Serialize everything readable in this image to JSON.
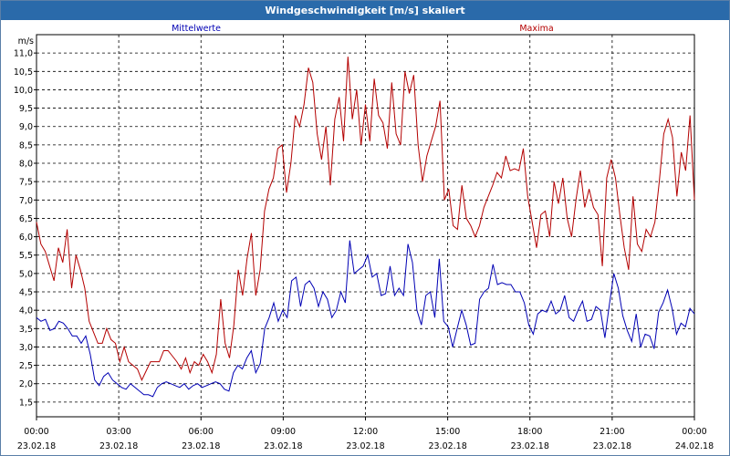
{
  "window": {
    "title": "Windgeschwindigkeit [m/s] skaliert"
  },
  "chart_data": {
    "type": "line",
    "title": "Windgeschwindigkeit [m/s] skaliert",
    "ylabel": "m/s",
    "xlabel": "",
    "ylim": [
      1.1,
      11.5
    ],
    "xlim": [
      0,
      24
    ],
    "grid": true,
    "y_ticks": [
      "1,5",
      "2,0",
      "2,5",
      "3,0",
      "3,5",
      "4,0",
      "4,5",
      "5,0",
      "5,5",
      "6,0",
      "6,5",
      "7,0",
      "7,5",
      "8,0",
      "8,5",
      "9,0",
      "9,5",
      "10,0",
      "10,5",
      "11,0"
    ],
    "x_ticks": [
      {
        "time": "00:00",
        "date": "23.02.18"
      },
      {
        "time": "03:00",
        "date": "23.02.18"
      },
      {
        "time": "06:00",
        "date": "23.02.18"
      },
      {
        "time": "09:00",
        "date": "23.02.18"
      },
      {
        "time": "12:00",
        "date": "23.02.18"
      },
      {
        "time": "15:00",
        "date": "23.02.18"
      },
      {
        "time": "18:00",
        "date": "23.02.18"
      },
      {
        "time": "21:00",
        "date": "23.02.18"
      },
      {
        "time": "00:00",
        "date": "24.02.18"
      }
    ],
    "x_step_hours": 0.1667,
    "series": [
      {
        "name": "Mittelwerte",
        "color": "#0000b4",
        "values": [
          3.8,
          3.7,
          3.75,
          3.45,
          3.5,
          3.7,
          3.65,
          3.5,
          3.3,
          3.3,
          3.1,
          3.3,
          2.8,
          2.1,
          1.95,
          2.2,
          2.3,
          2.1,
          2.0,
          1.9,
          1.85,
          2.0,
          1.9,
          1.8,
          1.7,
          1.7,
          1.65,
          1.9,
          2.0,
          2.05,
          2.0,
          1.95,
          1.9,
          2.0,
          1.85,
          1.95,
          2.0,
          1.9,
          1.95,
          2.0,
          2.05,
          2.0,
          1.85,
          1.8,
          2.3,
          2.5,
          2.4,
          2.7,
          2.9,
          2.3,
          2.55,
          3.5,
          3.8,
          4.2,
          3.7,
          4.0,
          3.8,
          4.8,
          4.9,
          4.1,
          4.7,
          4.8,
          4.6,
          4.1,
          4.5,
          4.3,
          3.8,
          4.0,
          4.5,
          4.2,
          5.9,
          5.0,
          5.1,
          5.2,
          5.5,
          4.9,
          5.0,
          4.4,
          4.45,
          5.2,
          4.4,
          4.6,
          4.4,
          5.8,
          5.3,
          4.0,
          3.6,
          4.4,
          4.5,
          3.8,
          5.4,
          3.7,
          3.55,
          3.0,
          3.5,
          4.0,
          3.6,
          3.05,
          3.1,
          4.3,
          4.5,
          4.6,
          5.25,
          4.7,
          4.75,
          4.7,
          4.7,
          4.5,
          4.5,
          4.2,
          3.6,
          3.35,
          3.9,
          4.0,
          3.95,
          4.25,
          3.9,
          4.0,
          4.4,
          3.8,
          3.7,
          4.0,
          4.25,
          3.7,
          3.75,
          4.1,
          4.0,
          3.25,
          4.15,
          5.0,
          4.6,
          3.85,
          3.45,
          3.15,
          3.9,
          3.0,
          3.35,
          3.3,
          2.95,
          3.95,
          4.2,
          4.55,
          4.05,
          3.35,
          3.65,
          3.55,
          4.05,
          3.9
        ]
      },
      {
        "name": "Maxima",
        "color": "#b40000",
        "values": [
          6.4,
          5.8,
          5.6,
          5.2,
          4.8,
          5.7,
          5.3,
          6.2,
          4.6,
          5.5,
          5.1,
          4.6,
          3.7,
          3.4,
          3.1,
          3.1,
          3.5,
          3.2,
          3.1,
          2.6,
          3.0,
          2.6,
          2.5,
          2.4,
          2.1,
          2.35,
          2.6,
          2.6,
          2.6,
          2.9,
          2.9,
          2.75,
          2.6,
          2.4,
          2.7,
          2.3,
          2.6,
          2.5,
          2.8,
          2.6,
          2.3,
          2.8,
          4.3,
          3.1,
          2.7,
          3.6,
          5.1,
          4.4,
          5.4,
          6.1,
          4.4,
          5.1,
          6.7,
          7.3,
          7.6,
          8.4,
          8.5,
          7.2,
          8.0,
          9.3,
          9.0,
          9.6,
          10.6,
          10.2,
          8.8,
          8.1,
          9.0,
          7.4,
          9.2,
          9.8,
          8.6,
          10.9,
          9.2,
          10.0,
          8.5,
          9.6,
          8.6,
          10.3,
          9.3,
          9.1,
          8.4,
          10.2,
          8.8,
          8.5,
          10.5,
          9.9,
          10.4,
          8.5,
          7.5,
          8.2,
          8.6,
          9.0,
          9.7,
          7.0,
          7.3,
          6.3,
          6.2,
          7.4,
          6.5,
          6.3,
          6.0,
          6.3,
          6.8,
          7.1,
          7.4,
          7.75,
          7.6,
          8.2,
          7.8,
          7.85,
          7.8,
          8.4,
          7.1,
          6.4,
          5.7,
          6.6,
          6.7,
          6.0,
          7.5,
          6.9,
          7.6,
          6.5,
          6.0,
          7.0,
          7.8,
          6.8,
          7.3,
          6.8,
          6.6,
          5.2,
          7.6,
          8.1,
          7.6,
          6.6,
          5.7,
          5.1,
          7.1,
          5.8,
          5.6,
          6.2,
          6.0,
          6.4,
          7.5,
          8.8,
          9.2,
          8.7,
          7.1,
          8.3,
          7.8,
          9.3,
          7.0
        ]
      }
    ],
    "legend": [
      {
        "label": "Mittelwerte",
        "color": "#0000b4"
      },
      {
        "label": "Maxima",
        "color": "#b40000"
      }
    ]
  }
}
